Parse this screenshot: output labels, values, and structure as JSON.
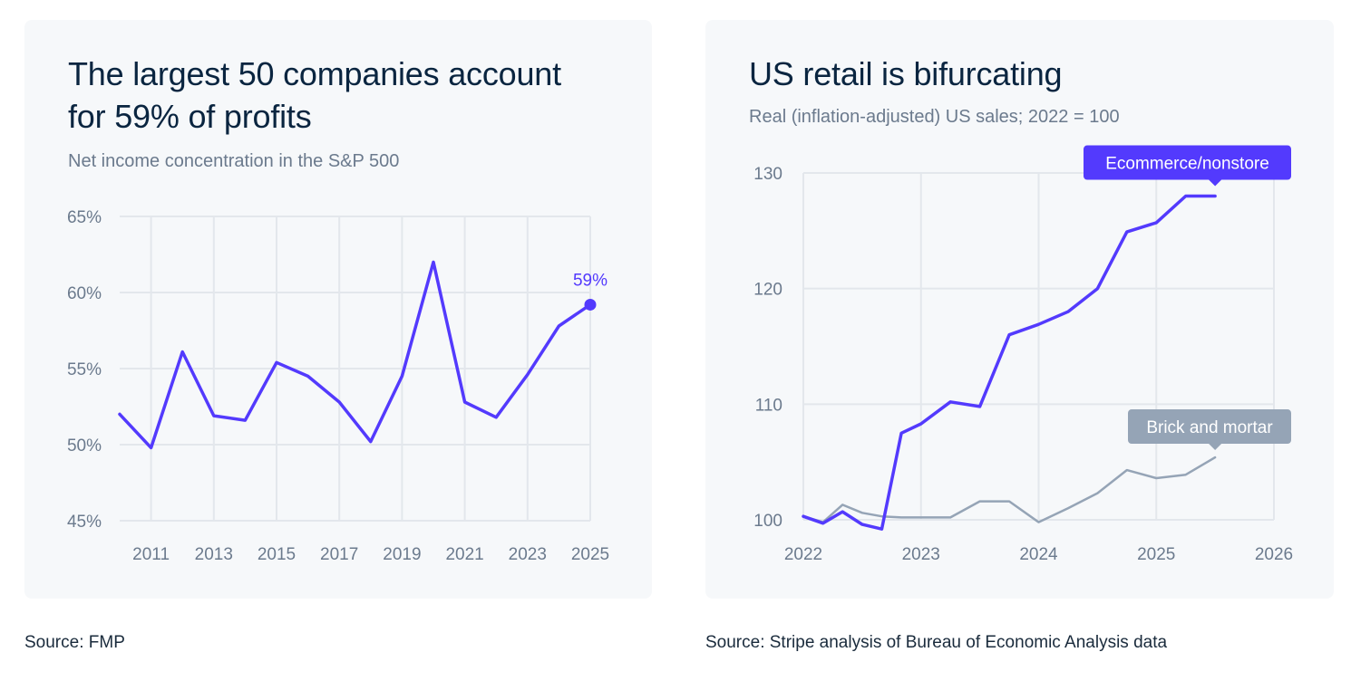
{
  "colors": {
    "card_background": "#f6f8fa",
    "grid": "#e3e7ec",
    "axis_text": "#6b7a8d",
    "accent_purple": "#533afd",
    "secondary_gray": "#95a4b6",
    "title_text": "#0a2540"
  },
  "left": {
    "title": "The largest 50 companies account for 59% of profits",
    "subtitle": "Net income concentration in the S&P 500",
    "source": "Source: FMP"
  },
  "right": {
    "title": "US retail is bifurcating",
    "subtitle": "Real (inflation-adjusted) US sales; 2022 = 100",
    "source": "Source: Stripe analysis of Bureau of Economic Analysis data"
  },
  "chart_data": [
    {
      "type": "line",
      "title": "The largest 50 companies account for 59% of profits",
      "subtitle": "Net income concentration in the S&P 500",
      "xlabel": "",
      "ylabel": "",
      "xlim": [
        2010,
        2025
      ],
      "ylim": [
        45,
        65
      ],
      "grid": true,
      "x_tick_labels": [
        "2011",
        "2013",
        "2015",
        "2017",
        "2019",
        "2021",
        "2023",
        "2025"
      ],
      "x_tick_values": [
        2011,
        2013,
        2015,
        2017,
        2019,
        2021,
        2023,
        2025
      ],
      "y_tick_labels": [
        "45%",
        "50%",
        "55%",
        "60%",
        "65%"
      ],
      "y_tick_values": [
        45,
        50,
        55,
        60,
        65
      ],
      "series": [
        {
          "color": "#533afd",
          "x": [
            2010,
            2011,
            2012,
            2013,
            2014,
            2015,
            2016,
            2017,
            2018,
            2019,
            2020,
            2021,
            2022,
            2023,
            2024,
            2025
          ],
          "y": [
            52.0,
            49.8,
            56.1,
            51.9,
            51.6,
            55.4,
            54.5,
            52.8,
            50.2,
            54.5,
            62.0,
            52.8,
            51.8,
            54.6,
            57.8,
            59.2
          ]
        }
      ],
      "annotations": [
        {
          "text": "59%",
          "x": 2025,
          "y": 59.2
        }
      ]
    },
    {
      "type": "line",
      "title": "US retail is bifurcating",
      "subtitle": "Real (inflation-adjusted) US sales; 2022 = 100",
      "xlabel": "",
      "ylabel": "",
      "xlim": [
        2022,
        2026
      ],
      "ylim": [
        100,
        130
      ],
      "grid": true,
      "x_tick_labels": [
        "2022",
        "2023",
        "2024",
        "2025",
        "2026"
      ],
      "x_tick_values": [
        2022,
        2023,
        2024,
        2025,
        2026
      ],
      "y_tick_labels": [
        "100",
        "110",
        "120",
        "130"
      ],
      "y_tick_values": [
        100,
        110,
        120,
        130
      ],
      "series": [
        {
          "name": "Brick and mortar",
          "color": "#95a4b6",
          "x": [
            2022.0,
            2022.167,
            2022.333,
            2022.5,
            2022.667,
            2022.833,
            2023.0,
            2023.25,
            2023.5,
            2023.75,
            2024.0,
            2024.25,
            2024.5,
            2024.75,
            2025.0,
            2025.25,
            2025.5
          ],
          "y": [
            100.3,
            99.8,
            101.3,
            100.6,
            100.3,
            100.2,
            100.2,
            100.2,
            101.6,
            101.6,
            99.8,
            101.0,
            102.3,
            104.3,
            103.6,
            103.9,
            105.4
          ]
        },
        {
          "name": "Ecommerce/nonstore",
          "color": "#533afd",
          "x": [
            2022.0,
            2022.167,
            2022.333,
            2022.5,
            2022.667,
            2022.833,
            2023.0,
            2023.25,
            2023.5,
            2023.75,
            2024.0,
            2024.25,
            2024.5,
            2024.75,
            2025.0,
            2025.25,
            2025.5
          ],
          "y": [
            100.3,
            99.7,
            100.7,
            99.6,
            99.2,
            107.5,
            108.3,
            110.2,
            109.8,
            116.0,
            116.9,
            118.0,
            120.0,
            124.9,
            125.7,
            128.0,
            128.0
          ]
        }
      ],
      "legend_placement": "labels at line ends (top-right)"
    }
  ]
}
